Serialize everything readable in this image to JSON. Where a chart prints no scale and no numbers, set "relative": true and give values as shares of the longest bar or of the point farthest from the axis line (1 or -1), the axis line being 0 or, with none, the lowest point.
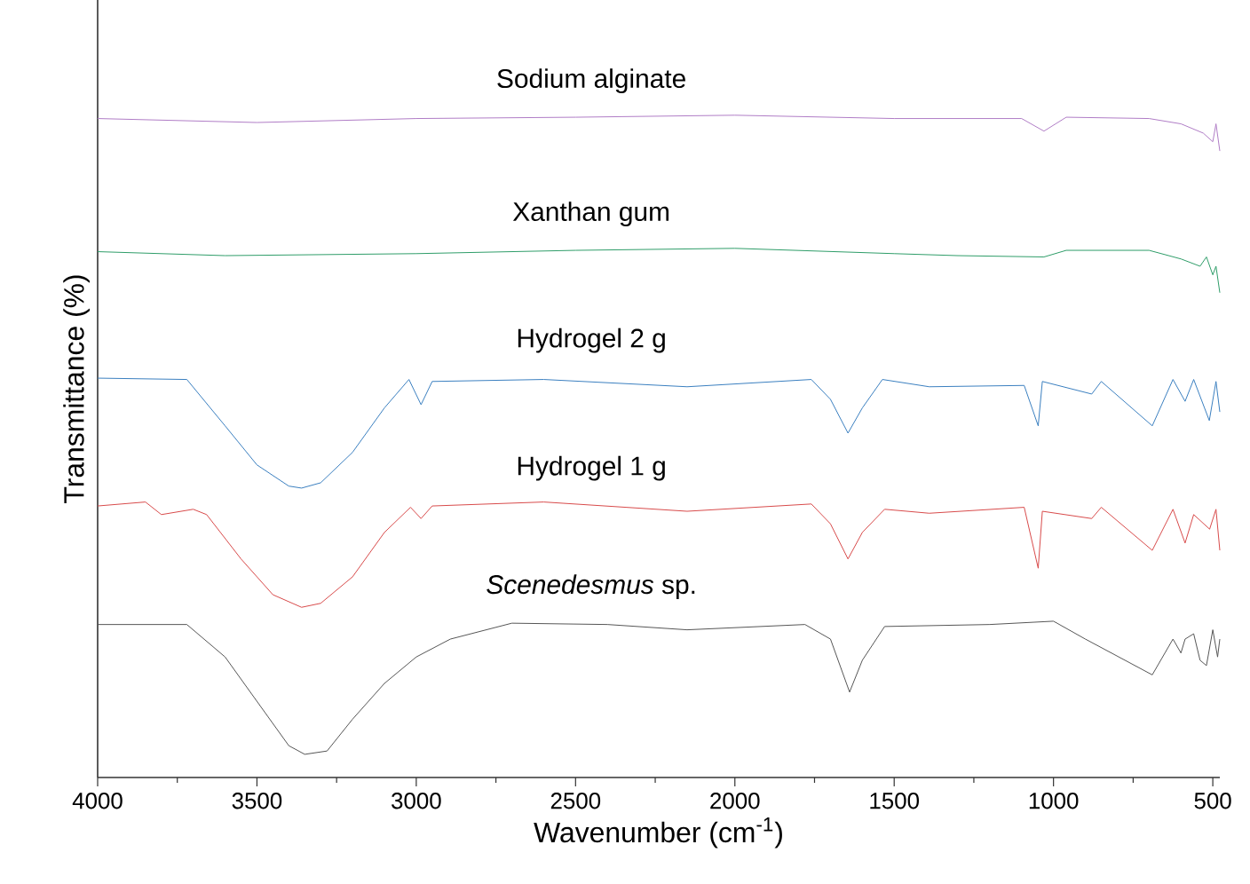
{
  "chart_data": {
    "type": "line",
    "relative": true,
    "xlabel": "Wavenumber (cm$^{-1}$)",
    "ylabel": "Transmittance (%)",
    "xlim": [
      4000,
      478
    ],
    "xticks": [
      4000,
      3500,
      3000,
      2500,
      2000,
      1500,
      1000,
      500
    ],
    "legend": false,
    "series": [
      {
        "name": "Sodium alginate",
        "color": "#b07cc6",
        "x": [
          4000,
          3500,
          3000,
          2500,
          2000,
          1500,
          1100,
          1030,
          960,
          700,
          600,
          530,
          500,
          490,
          478
        ],
        "values": [
          0.995,
          0.989,
          0.995,
          0.997,
          1.0,
          0.995,
          0.995,
          0.976,
          0.997,
          0.995,
          0.987,
          0.973,
          0.96,
          0.987,
          0.946
        ]
      },
      {
        "name": "Xanthan gum",
        "color": "#2e9d68",
        "x": [
          4000,
          3600,
          3000,
          2500,
          2000,
          1500,
          1300,
          1030,
          960,
          700,
          600,
          540,
          520,
          500,
          490,
          478
        ],
        "values": [
          0.794,
          0.788,
          0.791,
          0.796,
          0.799,
          0.791,
          0.788,
          0.786,
          0.796,
          0.796,
          0.783,
          0.772,
          0.786,
          0.759,
          0.772,
          0.732
        ]
      },
      {
        "name": "Hydrogel 2 g",
        "color": "#3a7fc0",
        "x": [
          4000,
          3720,
          3600,
          3500,
          3400,
          3360,
          3300,
          3200,
          3100,
          3023,
          2985,
          2950,
          2600,
          2150,
          1760,
          1700,
          1645,
          1600,
          1537,
          1390,
          1092,
          1048,
          1035,
          880,
          850,
          690,
          625,
          587,
          560,
          511,
          490,
          478
        ],
        "values": [
          0.603,
          0.601,
          0.531,
          0.472,
          0.44,
          0.437,
          0.445,
          0.491,
          0.558,
          0.601,
          0.563,
          0.598,
          0.601,
          0.59,
          0.601,
          0.571,
          0.52,
          0.558,
          0.601,
          0.59,
          0.592,
          0.531,
          0.598,
          0.579,
          0.598,
          0.531,
          0.601,
          0.568,
          0.601,
          0.539,
          0.598,
          0.552
        ]
      },
      {
        "name": "Hydrogel 1 g",
        "color": "#d84a4a",
        "x": [
          4000,
          3850,
          3800,
          3700,
          3658,
          3550,
          3450,
          3360,
          3300,
          3200,
          3100,
          3018,
          2985,
          2950,
          2600,
          2150,
          1760,
          1700,
          1645,
          1600,
          1530,
          1390,
          1092,
          1048,
          1035,
          880,
          850,
          690,
          625,
          587,
          560,
          510,
          490,
          478
        ],
        "values": [
          0.41,
          0.416,
          0.397,
          0.405,
          0.397,
          0.33,
          0.276,
          0.257,
          0.263,
          0.303,
          0.37,
          0.408,
          0.391,
          0.41,
          0.416,
          0.402,
          0.413,
          0.383,
          0.33,
          0.37,
          0.405,
          0.399,
          0.408,
          0.316,
          0.402,
          0.391,
          0.408,
          0.343,
          0.405,
          0.354,
          0.397,
          0.375,
          0.405,
          0.343
        ]
      },
      {
        "name": "*Scenedesmus* sp.",
        "color": "#555555",
        "x": [
          4000,
          3720,
          3600,
          3500,
          3400,
          3350,
          3280,
          3200,
          3100,
          3000,
          2893,
          2700,
          2400,
          2150,
          1780,
          1700,
          1640,
          1600,
          1530,
          1200,
          1000,
          900,
          690,
          625,
          600,
          587,
          560,
          540,
          520,
          500,
          485,
          478
        ],
        "values": [
          0.231,
          0.231,
          0.182,
          0.115,
          0.048,
          0.035,
          0.04,
          0.088,
          0.142,
          0.182,
          0.209,
          0.233,
          0.231,
          0.223,
          0.231,
          0.209,
          0.129,
          0.177,
          0.228,
          0.231,
          0.236,
          0.209,
          0.155,
          0.209,
          0.188,
          0.209,
          0.217,
          0.177,
          0.169,
          0.223,
          0.182,
          0.209
        ]
      }
    ]
  }
}
